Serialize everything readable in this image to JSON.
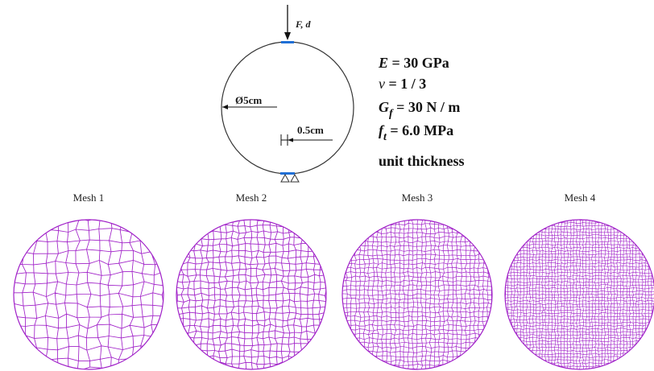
{
  "problem": {
    "load_label": "F, d",
    "diameter_label": "Ø5cm",
    "support_width_label": "0.5cm"
  },
  "properties": {
    "E_symbol": "E",
    "E_value": " = 30 GPa",
    "nu_symbol": "ν",
    "nu_value": " = 1 / 3",
    "Gf_symbol": "G",
    "Gf_sub": "f",
    "Gf_value": " = 30 N / m",
    "ft_symbol": "f",
    "ft_sub": "t",
    "ft_value": " = 6.0 MPa",
    "thickness": "unit thickness"
  },
  "meshes": [
    {
      "title": "Mesh 1",
      "density": 14
    },
    {
      "title": "Mesh 2",
      "density": 24
    },
    {
      "title": "Mesh 3",
      "density": 34
    },
    {
      "title": "Mesh 4",
      "density": 48
    }
  ],
  "colors": {
    "mesh": "#a020c8",
    "loading_plate": "#1f6fd6",
    "outline": "#333333"
  }
}
